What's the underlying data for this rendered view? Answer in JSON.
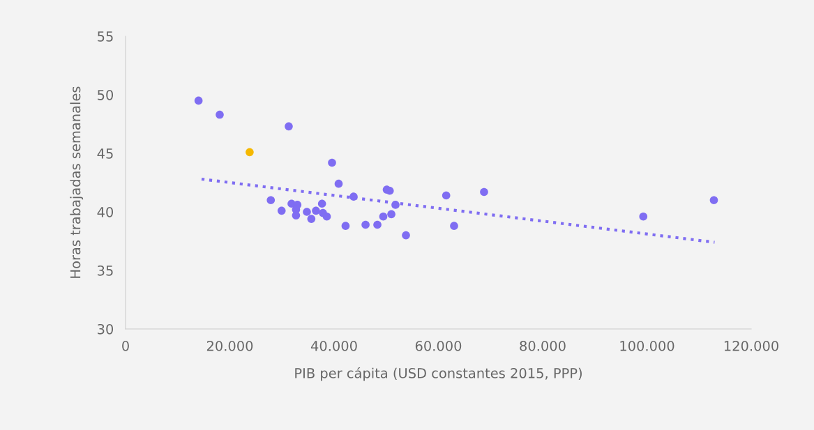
{
  "chart_data": {
    "type": "scatter",
    "xlabel": "PIB per cápita (USD constantes 2015, PPP)",
    "ylabel": "Horas trabajadas semanales",
    "xlim": [
      0,
      120000
    ],
    "ylim": [
      30,
      55
    ],
    "xticks": [
      {
        "value": 0,
        "label": "0"
      },
      {
        "value": 20000,
        "label": "20.000"
      },
      {
        "value": 40000,
        "label": "40.000"
      },
      {
        "value": 60000,
        "label": "60.000"
      },
      {
        "value": 80000,
        "label": "80.000"
      },
      {
        "value": 100000,
        "label": "100.000"
      },
      {
        "value": 120000,
        "label": "120.000"
      }
    ],
    "yticks": [
      30,
      35,
      40,
      45,
      50,
      55
    ],
    "grid": false,
    "legend": false,
    "series": [
      {
        "marker": "circle",
        "x": [
          14000,
          18060,
          23800,
          31300,
          39600,
          40870,
          27860,
          29930,
          31840,
          32950,
          32700,
          32700,
          34780,
          35630,
          36520,
          37680,
          37860,
          38600,
          42200,
          43740,
          46030,
          48300,
          49430,
          50980,
          50100,
          50670,
          51770,
          53780,
          61500,
          63010,
          68760,
          99300,
          112840
        ],
        "values": [
          49.5,
          48.3,
          45.1,
          47.3,
          44.2,
          42.4,
          41.0,
          40.1,
          40.7,
          40.6,
          40.2,
          39.7,
          40.0,
          39.4,
          40.1,
          40.7,
          39.9,
          39.6,
          38.8,
          41.3,
          38.9,
          38.9,
          39.6,
          39.8,
          41.9,
          41.8,
          40.6,
          38.0,
          41.4,
          38.8,
          41.7,
          39.6,
          41.0
        ],
        "colors": [
          "#7f6df2",
          "#7f6df2",
          "#f5b800",
          "#7f6df2",
          "#7f6df2",
          "#7f6df2",
          "#7f6df2",
          "#7f6df2",
          "#7f6df2",
          "#7f6df2",
          "#7f6df2",
          "#7f6df2",
          "#7f6df2",
          "#7f6df2",
          "#7f6df2",
          "#7f6df2",
          "#7f6df2",
          "#7f6df2",
          "#7f6df2",
          "#7f6df2",
          "#7f6df2",
          "#7f6df2",
          "#7f6df2",
          "#7f6df2",
          "#7f6df2",
          "#7f6df2",
          "#7f6df2",
          "#7f6df2",
          "#7f6df2",
          "#7f6df2",
          "#7f6df2",
          "#7f6df2",
          "#7f6df2"
        ]
      },
      {
        "type": "line",
        "line_style": "dotted",
        "marker": "none",
        "color": "#7f6df2",
        "x": [
          14580,
          112970
        ],
        "values": [
          42.8,
          37.4
        ]
      }
    ]
  }
}
